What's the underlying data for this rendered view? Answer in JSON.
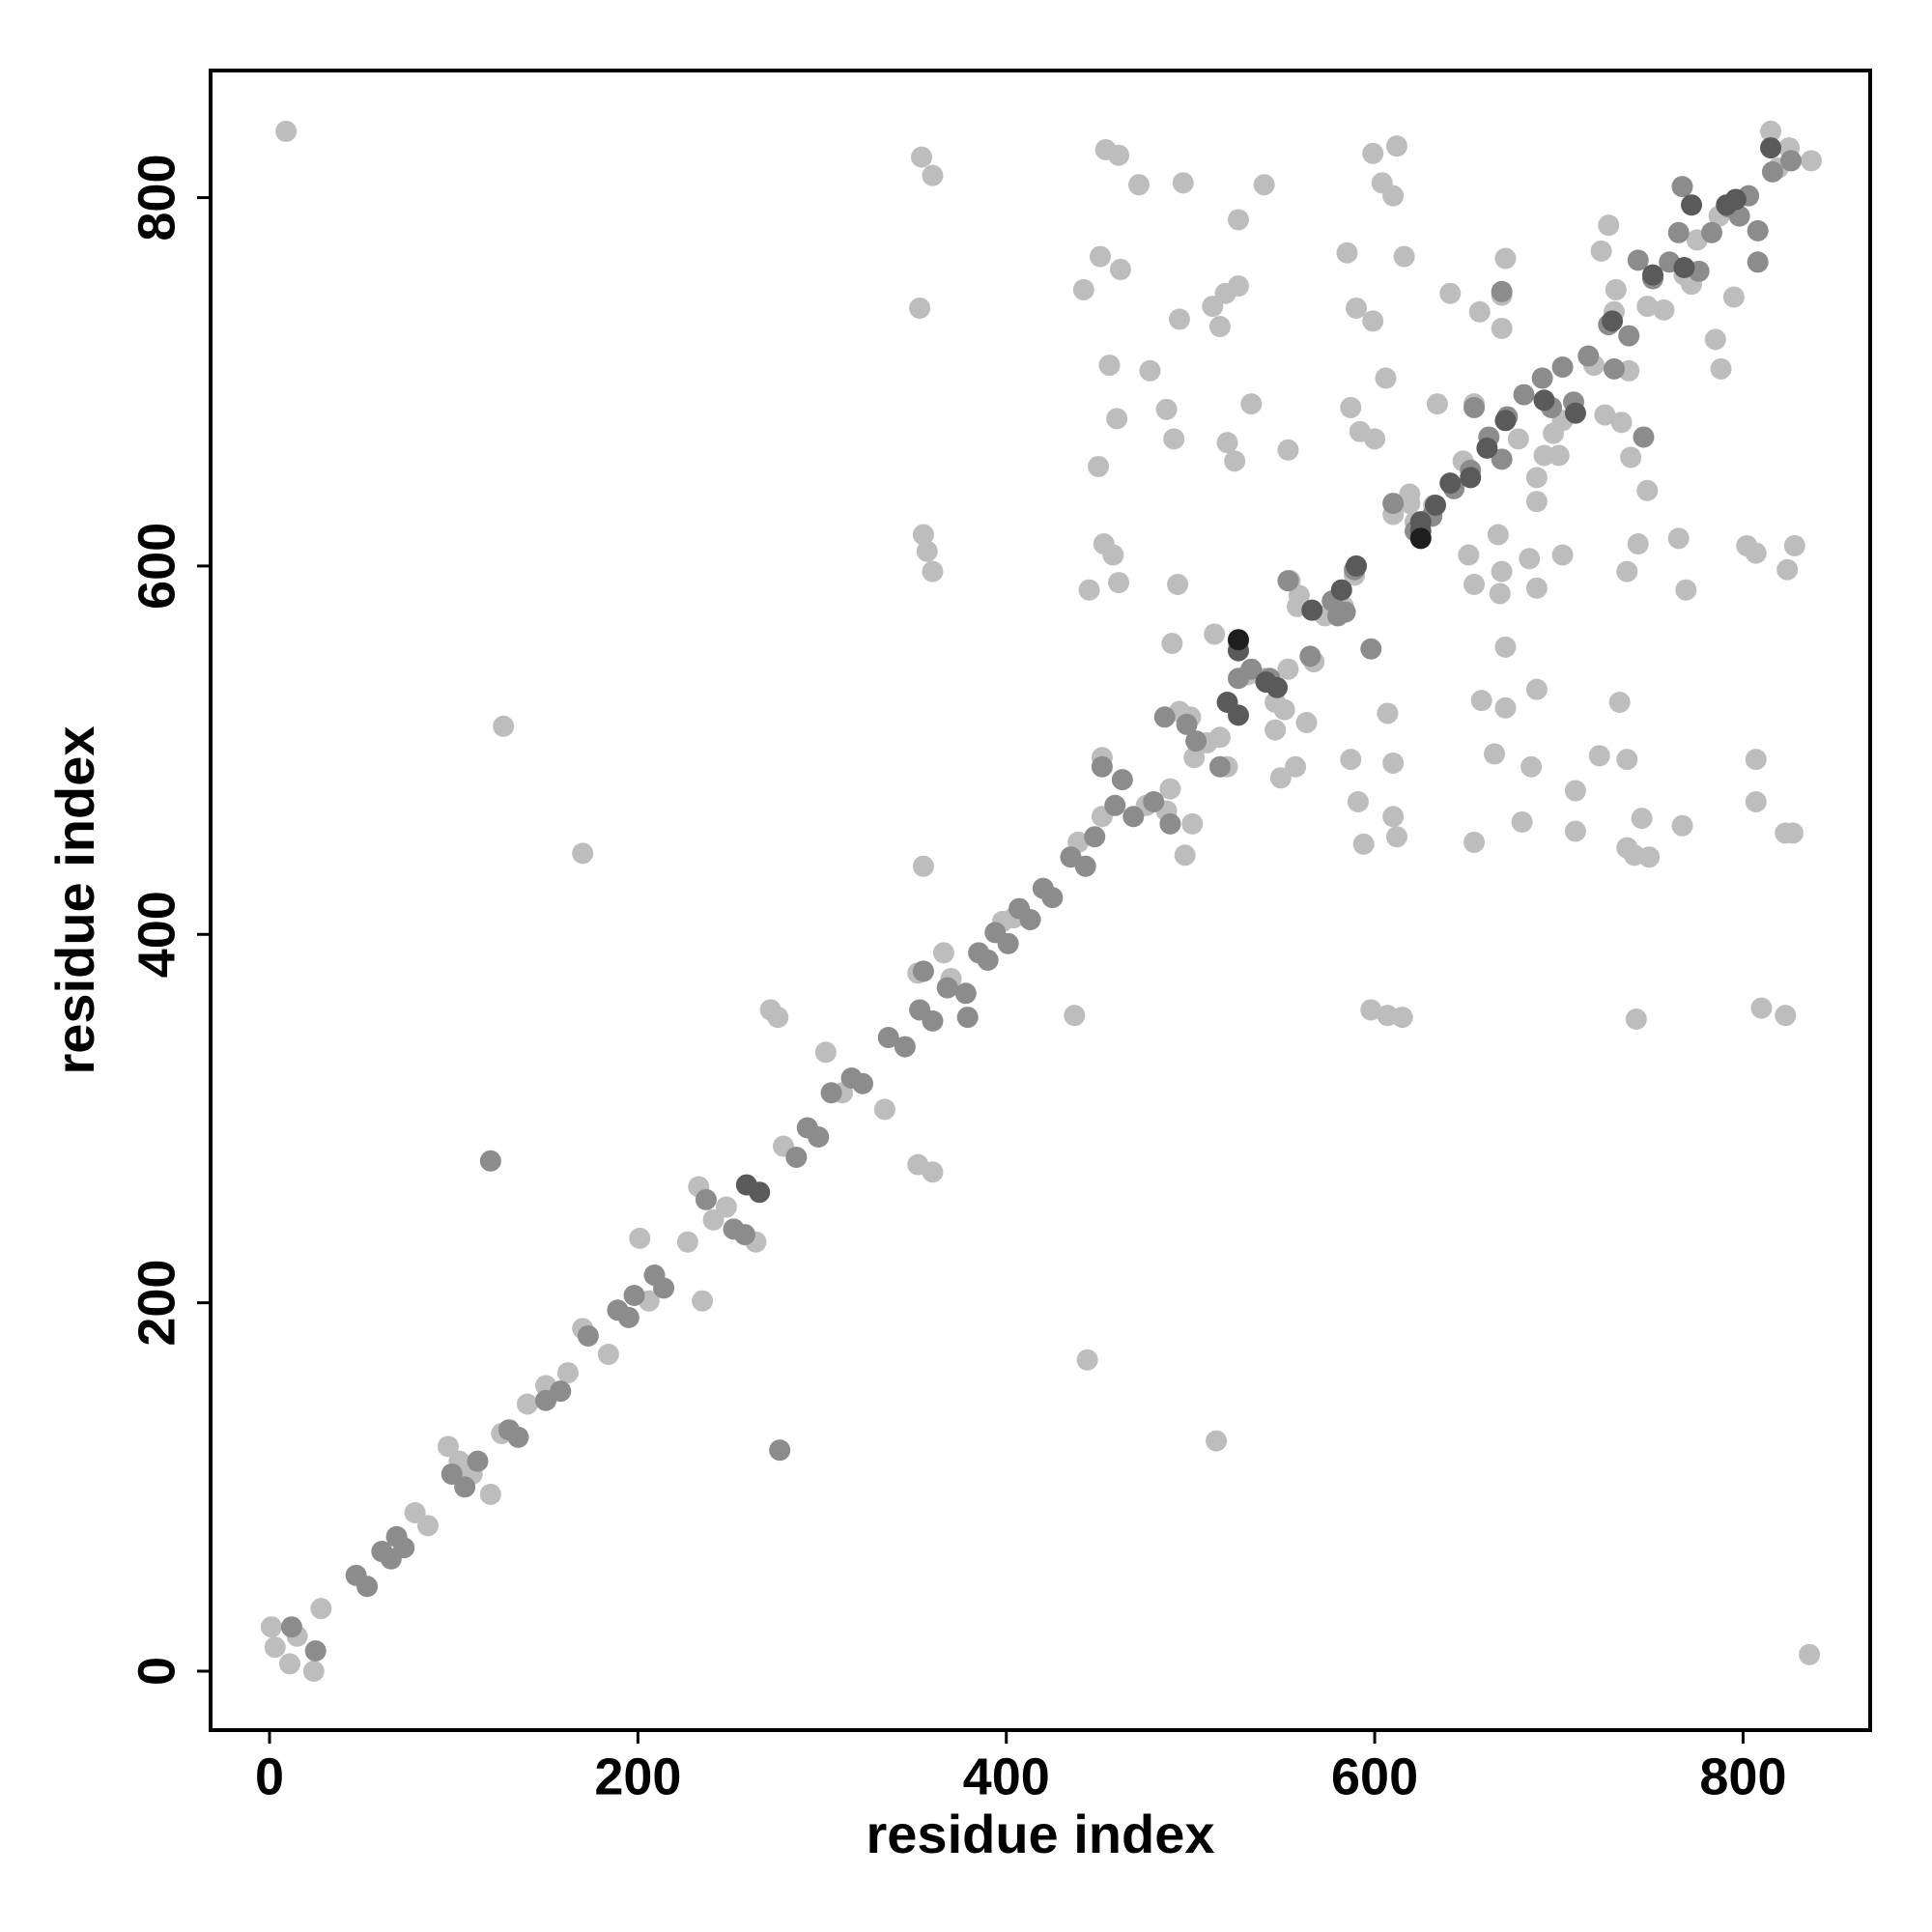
{
  "chart_data": {
    "type": "scatter",
    "xlabel": "residue index",
    "ylabel": "residue index",
    "xlim": [
      -32,
      869
    ],
    "ylim": [
      -32,
      869
    ],
    "xticks": [
      0,
      200,
      400,
      600,
      800
    ],
    "yticks": [
      0,
      200,
      400,
      600,
      800
    ],
    "grid": false,
    "series": [
      {
        "color": "#bdbdbd",
        "x": [
          9,
          127,
          170,
          444,
          514,
          836,
          1,
          3,
          11,
          15,
          24,
          28,
          79,
          86,
          97,
          103,
          110,
          120,
          126,
          140,
          150,
          162,
          170,
          184,
          201,
          206,
          227,
          233,
          235,
          241,
          248,
          264,
          272,
          276,
          279,
          302,
          311,
          334,
          354,
          360,
          353,
          355,
          357,
          360,
          352,
          360,
          355,
          352,
          370,
          366,
          398,
          404,
          437,
          442,
          451,
          454,
          462,
          461,
          456,
          450,
          445,
          453,
          458,
          461,
          460,
          452,
          472,
          478,
          487,
          493,
          491,
          496,
          494,
          501,
          489,
          502,
          497,
          490,
          494,
          512,
          519,
          526,
          516,
          526,
          524,
          520,
          533,
          540,
          553,
          513,
          516,
          520,
          526,
          531,
          546,
          553,
          558,
          554,
          549,
          557,
          563,
          551,
          573,
          583,
          585,
          590,
          587,
          592,
          600,
          587,
          591,
          594,
          599,
          612,
          604,
          610,
          616,
          606,
          607,
          610,
          610,
          612,
          598,
          607,
          615,
          599,
          619,
          622,
          634,
          641,
          654,
          654,
          654,
          658,
          657,
          665,
          669,
          669,
          671,
          671,
          669,
          668,
          678,
          680,
          685,
          688,
          688,
          688,
          684,
          688,
          671,
          702,
          709,
          709,
          692,
          697,
          722,
          725,
          727,
          730,
          723,
          734,
          738,
          737,
          733,
          737,
          741,
          737,
          742,
          739,
          748,
          743,
          745,
          749,
          765,
          767,
          769,
          772,
          785,
          788,
          802,
          807,
          807,
          807,
          810,
          823,
          824,
          828,
          823,
          827,
          757,
          768,
          787,
          795,
          748,
          731,
          815,
          825,
          837,
          819,
          775,
          719,
          702,
          700,
          667,
          651,
          632,
          648,
          619,
          610,
          589,
          559,
          540,
          567,
          546,
          509,
          500,
          476,
          487,
          452,
          439
        ],
        "y": [
          836,
          513,
          444,
          169,
          125,
          9,
          24,
          13,
          4,
          19,
          0,
          34,
          86,
          79,
          122,
          114,
          107,
          96,
          129,
          145,
          155,
          162,
          186,
          172,
          235,
          201,
          233,
          263,
          201,
          245,
          252,
          233,
          359,
          355,
          285,
          336,
          314,
          305,
          822,
          812,
          740,
          617,
          608,
          597,
          275,
          271,
          437,
          379,
          376,
          390,
          407,
          409,
          356,
          750,
          768,
          826,
          761,
          823,
          709,
          654,
          587,
          612,
          606,
          591,
          680,
          496,
          807,
          706,
          685,
          590,
          669,
          808,
          734,
          460,
          479,
          496,
          443,
          558,
          521,
          741,
          748,
          752,
          730,
          788,
          657,
          667,
          688,
          807,
          663,
          563,
          507,
          491,
          558,
          541,
          526,
          544,
          578,
          592,
          485,
          491,
          515,
          522,
          573,
          578,
          770,
          740,
          686,
          673,
          669,
          495,
          472,
          449,
          824,
          828,
          808,
          801,
          768,
          702,
          520,
          493,
          464,
          453,
          359,
          356,
          355,
          733,
          639,
          624,
          688,
          748,
          688,
          450,
          590,
          527,
          738,
          498,
          729,
          747,
          556,
          523,
          597,
          585,
          669,
          461,
          491,
          533,
          648,
          635,
          604,
          588,
          767,
          606,
          478,
          456,
          660,
          672,
          497,
          682,
          785,
          738,
          771,
          678,
          706,
          495,
          526,
          447,
          443,
          597,
          354,
          659,
          641,
          612,
          463,
          442,
          615,
          459,
          587,
          753,
          723,
          707,
          611,
          607,
          495,
          472,
          360,
          356,
          598,
          611,
          455,
          455,
          739,
          758,
          790,
          746,
          741,
          750,
          836,
          827,
          820,
          816,
          777,
          709,
          679,
          660,
          617,
          606,
          633,
          657,
          634,
          628,
          595,
          584,
          539,
          548,
          511,
          504,
          518,
          470,
          467,
          464,
          450
        ]
      },
      {
        "color": "#8c8c8c",
        "x": [
          12,
          25,
          47,
          53,
          61,
          66,
          69,
          73,
          99,
          106,
          120,
          113,
          130,
          135,
          150,
          158,
          173,
          189,
          195,
          198,
          209,
          214,
          237,
          252,
          258,
          277,
          286,
          292,
          298,
          305,
          316,
          322,
          336,
          345,
          353,
          355,
          360,
          368,
          378,
          379,
          385,
          390,
          394,
          401,
          407,
          413,
          420,
          425,
          435,
          443,
          448,
          452,
          463,
          459,
          469,
          480,
          489,
          486,
          498,
          503,
          516,
          526,
          533,
          543,
          553,
          565,
          577,
          580,
          589,
          598,
          584,
          610,
          622,
          631,
          643,
          652,
          662,
          669,
          672,
          681,
          691,
          696,
          702,
          708,
          716,
          727,
          730,
          738,
          743,
          746,
          751,
          760,
          765,
          767,
          776,
          783,
          792,
          798,
          803,
          808,
          808,
          816,
          826,
          669,
          654
        ],
        "y": [
          24,
          11,
          52,
          46,
          65,
          61,
          73,
          67,
          107,
          100,
          277,
          114,
          131,
          127,
          147,
          152,
          182,
          196,
          192,
          204,
          215,
          208,
          256,
          240,
          237,
          120,
          279,
          295,
          290,
          314,
          322,
          319,
          344,
          339,
          359,
          380,
          353,
          371,
          368,
          355,
          390,
          386,
          401,
          395,
          414,
          408,
          425,
          420,
          442,
          437,
          453,
          491,
          484,
          470,
          464,
          472,
          460,
          518,
          514,
          505,
          491,
          539,
          544,
          539,
          592,
          551,
          581,
          573,
          598,
          555,
          575,
          634,
          619,
          627,
          642,
          652,
          670,
          658,
          681,
          693,
          702,
          686,
          708,
          689,
          714,
          731,
          707,
          725,
          766,
          670,
          756,
          765,
          781,
          806,
          760,
          781,
          795,
          790,
          801,
          765,
          782,
          814,
          820,
          749,
          686
        ]
      },
      {
        "color": "#5a5a5a",
        "x": [
          259,
          266,
          541,
          526,
          520,
          526,
          547,
          566,
          590,
          625,
          633,
          641,
          652,
          661,
          671,
          692,
          709,
          729,
          751,
          768,
          772,
          791,
          796,
          815,
          625,
          582
        ],
        "y": [
          264,
          260,
          537,
          554,
          526,
          519,
          534,
          576,
          600,
          624,
          633,
          645,
          648,
          664,
          679,
          690,
          683,
          733,
          758,
          762,
          796,
          796,
          799,
          827,
          619,
          587
        ]
      },
      {
        "color": "#1e1e1e",
        "x": [
          625,
          526
        ],
        "y": [
          615,
          560
        ]
      }
    ]
  }
}
